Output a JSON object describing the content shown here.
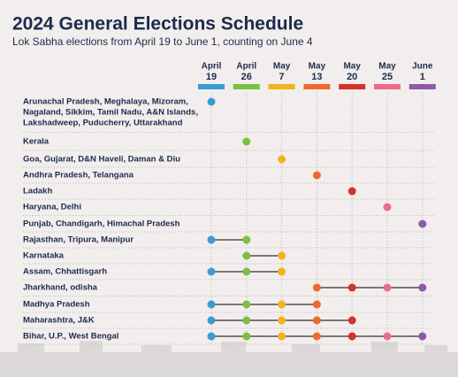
{
  "header": {
    "title": "2024 General Elections Schedule",
    "subtitle": "Lok Sabha elections from April 19 to June 1, counting on June 4"
  },
  "phases": [
    {
      "month": "April",
      "day": "19",
      "color": "#3a9bd5"
    },
    {
      "month": "April",
      "day": "26",
      "color": "#7ac13d"
    },
    {
      "month": "May",
      "day": "7",
      "color": "#f2b31c"
    },
    {
      "month": "May",
      "day": "13",
      "color": "#ee6a2b"
    },
    {
      "month": "May",
      "day": "20",
      "color": "#d7302c"
    },
    {
      "month": "May",
      "day": "25",
      "color": "#ee6b87"
    },
    {
      "month": "June",
      "day": "1",
      "color": "#8f5aa8"
    }
  ],
  "rows": [
    {
      "lines": [
        "Arunachal Pradesh, Meghalaya, Mizoram,",
        "Nagaland, Sikkim, Tamil Nadu, A&N Islands,",
        "Lakshadweep, Puducherry, Uttarakhand"
      ],
      "phases": [
        0
      ]
    },
    {
      "lines": [
        "Kerala"
      ],
      "phases": [
        1
      ]
    },
    {
      "lines": [
        "Goa, Gujarat, D&N Haveli, Daman & Diu"
      ],
      "phases": [
        2
      ]
    },
    {
      "lines": [
        "Andhra Pradesh, Telangana"
      ],
      "phases": [
        3
      ]
    },
    {
      "lines": [
        "Ladakh"
      ],
      "phases": [
        4
      ]
    },
    {
      "lines": [
        "Haryana, Delhi"
      ],
      "phases": [
        5
      ]
    },
    {
      "lines": [
        "Punjab, Chandigarh, Himachal Pradesh"
      ],
      "phases": [
        6
      ]
    },
    {
      "lines": [
        "Rajasthan, Tripura, Manipur"
      ],
      "phases": [
        0,
        1
      ]
    },
    {
      "lines": [
        "Karnataka"
      ],
      "phases": [
        1,
        2
      ]
    },
    {
      "lines": [
        "Assam, Chhattisgarh"
      ],
      "phases": [
        0,
        1,
        2
      ]
    },
    {
      "lines": [
        "Jharkhand, odisha"
      ],
      "phases": [
        3,
        4,
        5,
        6
      ]
    },
    {
      "lines": [
        "Madhya Pradesh"
      ],
      "phases": [
        0,
        1,
        2,
        3
      ]
    },
    {
      "lines": [
        "Maharashtra, J&K"
      ],
      "phases": [
        0,
        1,
        2,
        3,
        4
      ]
    },
    {
      "lines": [
        "Bihar, U.P., West Bengal"
      ],
      "phases": [
        0,
        1,
        2,
        3,
        4,
        5,
        6
      ]
    }
  ]
}
